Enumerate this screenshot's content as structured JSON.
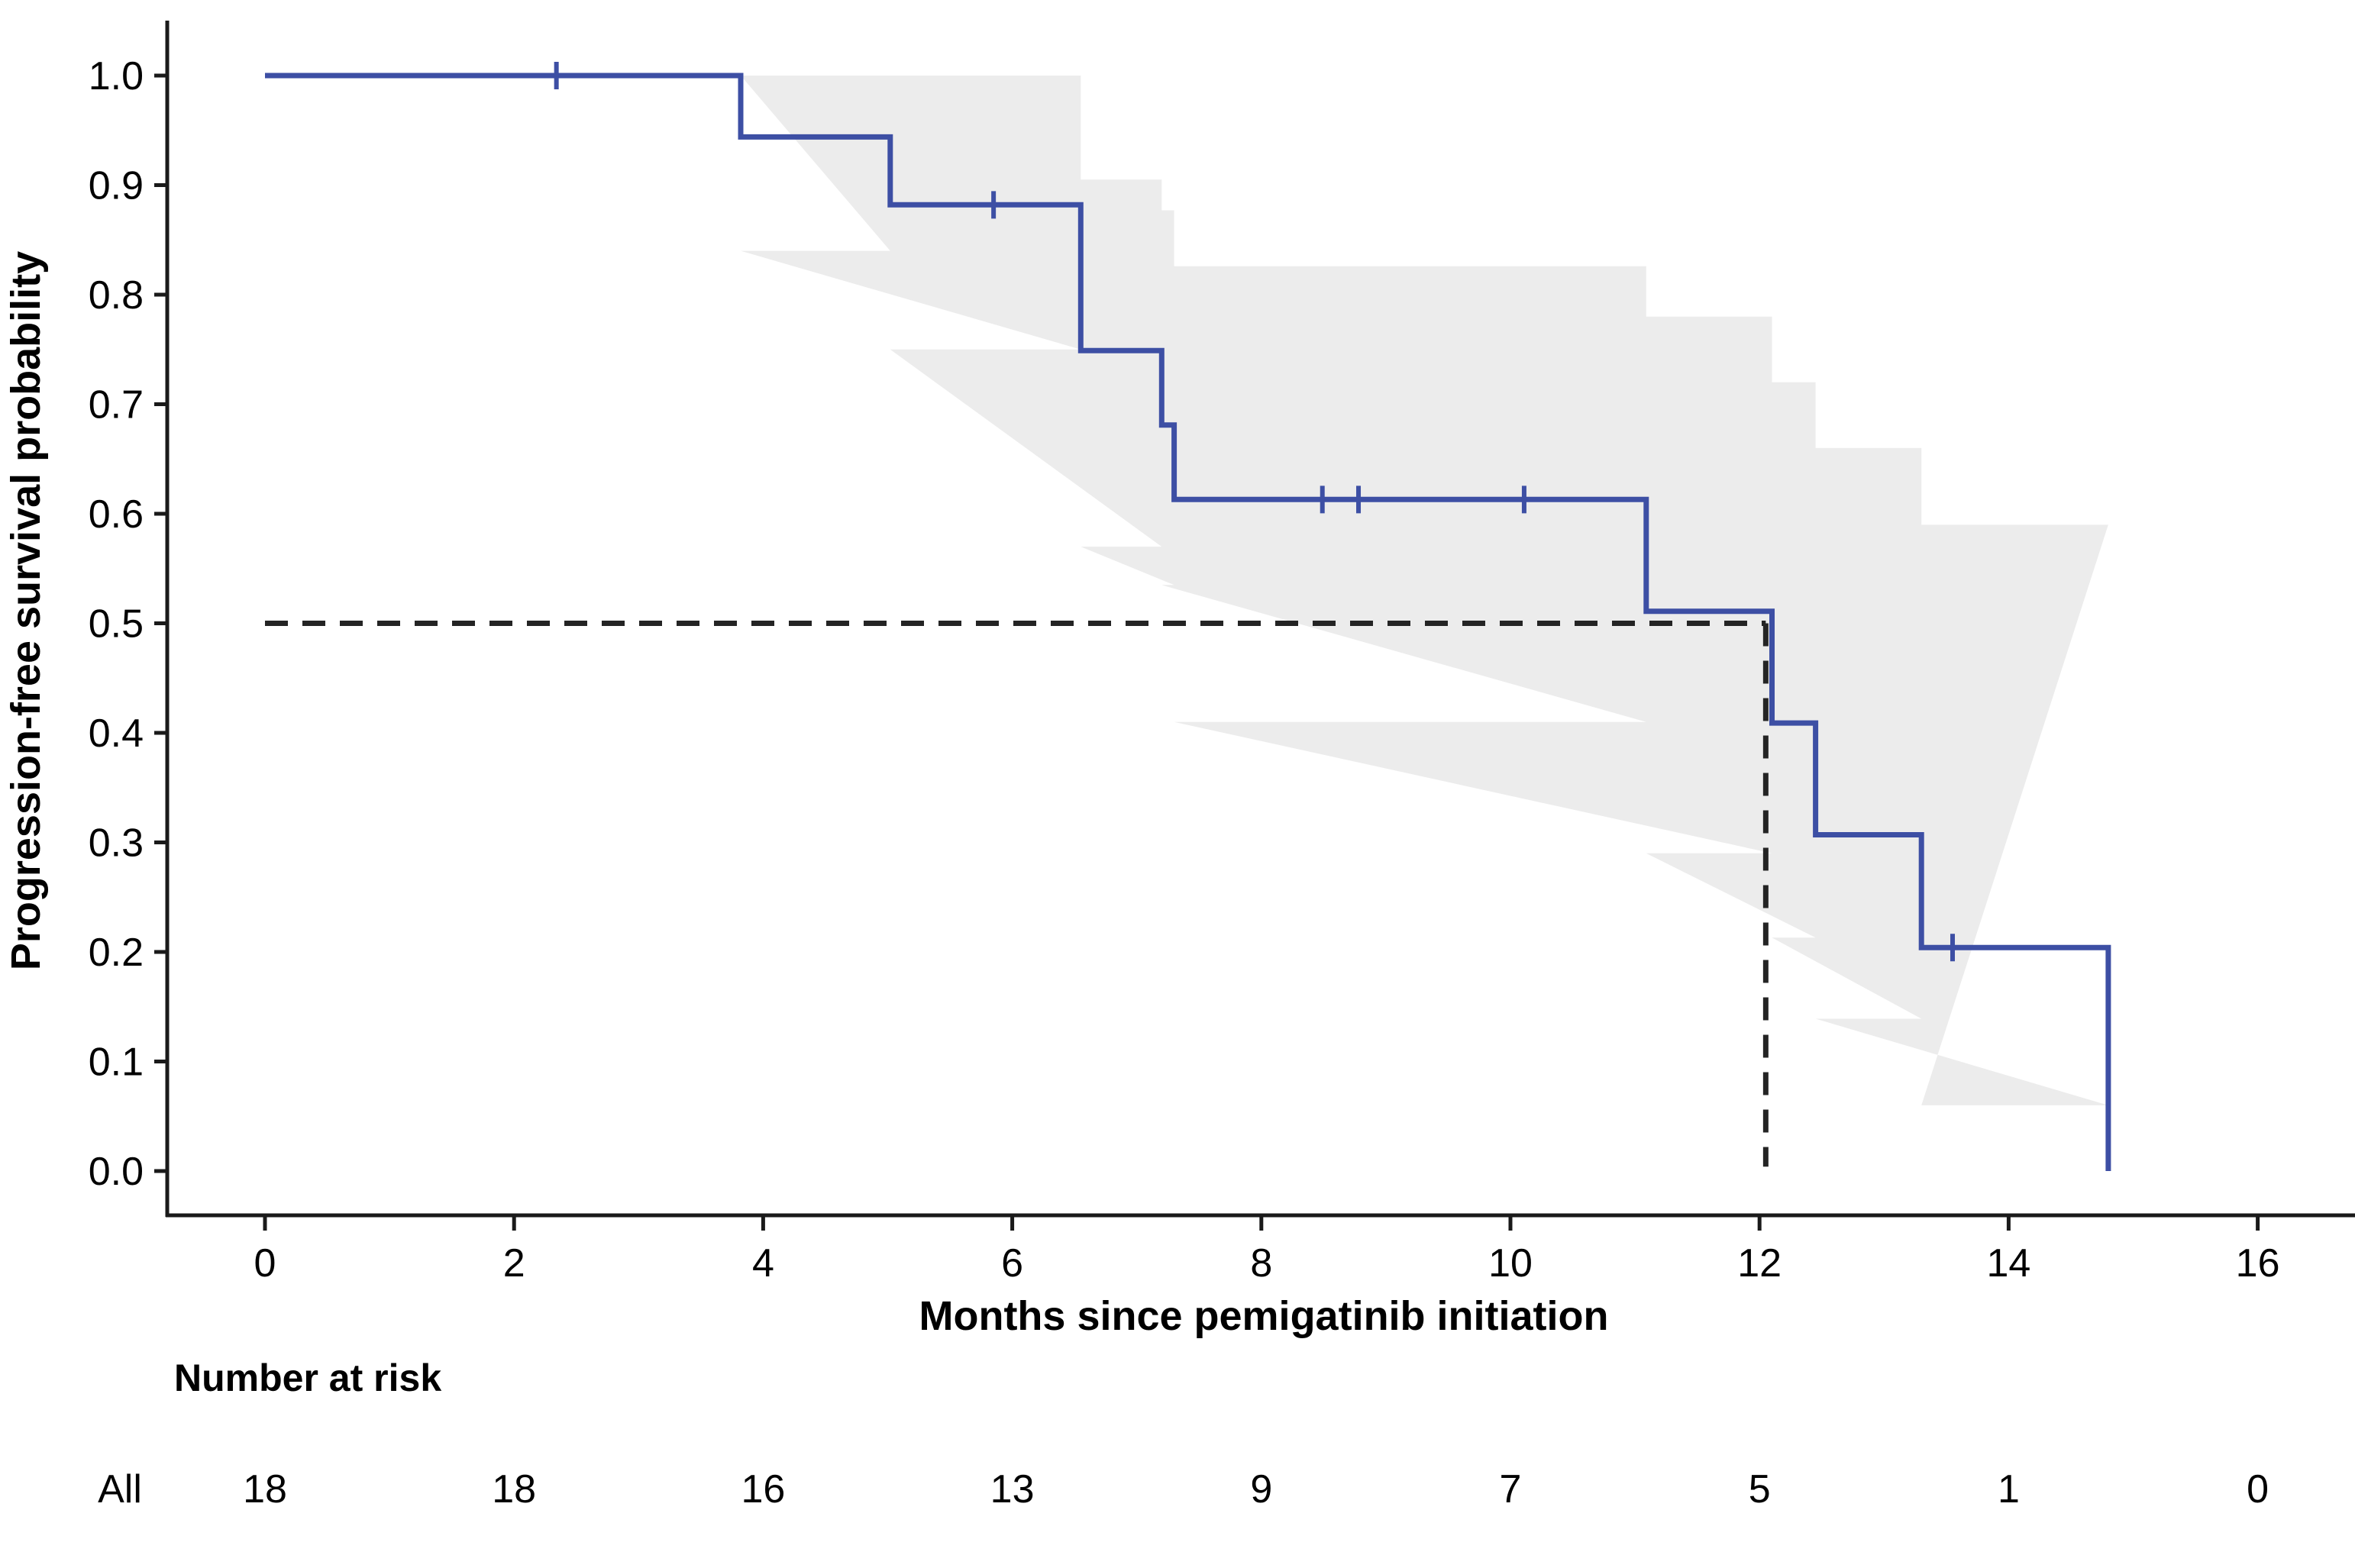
{
  "chart_data": {
    "type": "line",
    "subtype": "kaplan-meier-step",
    "title": "",
    "xlabel": "Months since pemigatinib initiation",
    "ylabel": "Progression-free survival probability",
    "xlim": [
      0,
      16
    ],
    "ylim": [
      0.0,
      1.0
    ],
    "xticks": [
      0,
      2,
      4,
      6,
      8,
      10,
      12,
      14,
      16
    ],
    "ytick_labels": [
      "1.0",
      "0.9",
      "0.8",
      "0.7",
      "0.6",
      "0.5",
      "0.4",
      "0.3",
      "0.2",
      "0.1",
      "0.0"
    ],
    "grid": false,
    "legend_position": "none",
    "ci_color": "#ececec",
    "dash_color": "#242424",
    "axis_color": "#1a1a1a",
    "series": [
      {
        "name": "All",
        "color": "#3d4fa4",
        "step_points": [
          [
            0,
            1.0
          ],
          [
            3.82,
            0.944
          ],
          [
            5.02,
            0.882
          ],
          [
            6.55,
            0.749
          ],
          [
            7.2,
            0.681
          ],
          [
            7.3,
            0.613
          ],
          [
            11.09,
            0.511
          ],
          [
            12.1,
            0.409
          ],
          [
            12.45,
            0.307
          ],
          [
            13.3,
            0.204
          ],
          [
            14.8,
            0.0
          ]
        ],
        "censor_marks": [
          [
            2.34,
            1.0
          ],
          [
            5.85,
            0.882
          ],
          [
            8.49,
            0.613
          ],
          [
            8.78,
            0.613
          ],
          [
            10.11,
            0.613
          ],
          [
            13.55,
            0.204
          ]
        ],
        "ci_segments": [
          [
            3.82,
            5.02,
            1.0,
            0.84
          ],
          [
            5.02,
            6.55,
            1.0,
            0.75
          ],
          [
            6.55,
            7.2,
            0.905,
            0.57
          ],
          [
            7.2,
            7.3,
            0.877,
            0.535
          ],
          [
            7.3,
            11.09,
            0.826,
            0.41
          ],
          [
            11.09,
            12.1,
            0.78,
            0.29
          ],
          [
            12.1,
            12.45,
            0.72,
            0.213
          ],
          [
            12.45,
            13.3,
            0.66,
            0.139
          ],
          [
            13.3,
            14.8,
            0.59,
            0.06
          ]
        ]
      }
    ],
    "median_annotation": {
      "time": 12.05,
      "survival": 0.5
    }
  },
  "risk_table": {
    "title": "Number at risk",
    "group": "All",
    "group_color": "#3d4fa4",
    "times": [
      0,
      2,
      4,
      6,
      8,
      10,
      12,
      14,
      16
    ],
    "counts": [
      "18",
      "18",
      "16",
      "13",
      "9",
      "7",
      "5",
      "1",
      "0"
    ]
  }
}
